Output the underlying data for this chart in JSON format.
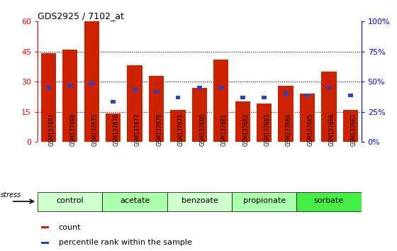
{
  "title": "GDS2925 / 7102_at",
  "samples": [
    "GSM137497",
    "GSM137498",
    "GSM137675",
    "GSM137676",
    "GSM137677",
    "GSM137678",
    "GSM137679",
    "GSM137680",
    "GSM137681",
    "GSM137682",
    "GSM137683",
    "GSM137684",
    "GSM137685",
    "GSM137686",
    "GSM137687"
  ],
  "count_values": [
    44,
    46,
    60,
    14,
    38,
    33,
    16,
    27,
    41,
    20,
    19,
    28,
    24,
    35,
    16
  ],
  "percentile_values": [
    27,
    28,
    29,
    20,
    26,
    25,
    22,
    27,
    27,
    22,
    22,
    24,
    23,
    27,
    23
  ],
  "ylim_left": [
    0,
    60
  ],
  "ylim_right": [
    0,
    100
  ],
  "yticks_left": [
    0,
    15,
    30,
    45,
    60
  ],
  "yticks_right": [
    0,
    25,
    50,
    75,
    100
  ],
  "ytick_labels_right": [
    "0%",
    "25%",
    "50%",
    "75%",
    "100%"
  ],
  "bar_color_red": "#cc2200",
  "bar_color_blue": "#2244cc",
  "legend_items": [
    "count",
    "percentile rank within the sample"
  ],
  "stress_label": "stress",
  "tick_area_bg": "#c8c8c8",
  "group_colors": [
    "#ccffcc",
    "#aaffaa",
    "#ccffcc",
    "#aaffaa",
    "#44ee44"
  ],
  "groups": [
    {
      "label": "control",
      "start": 0,
      "end": 3
    },
    {
      "label": "acetate",
      "start": 3,
      "end": 6
    },
    {
      "label": "benzoate",
      "start": 6,
      "end": 9
    },
    {
      "label": "propionate",
      "start": 9,
      "end": 12
    },
    {
      "label": "sorbate",
      "start": 12,
      "end": 15
    }
  ]
}
